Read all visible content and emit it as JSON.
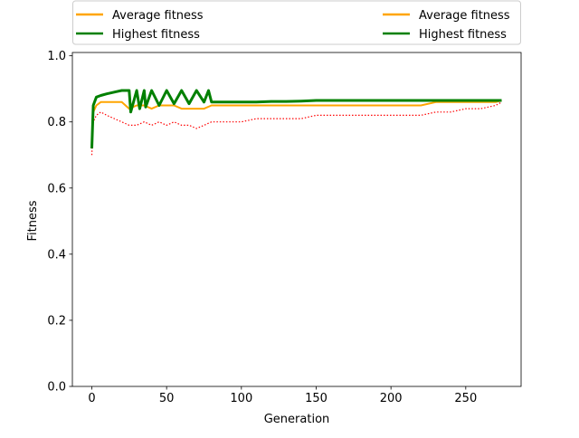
{
  "chart_data": {
    "type": "line",
    "xlabel": "Generation",
    "ylabel": "Fitness",
    "xlim": [
      -13,
      287
    ],
    "ylim": [
      0.0,
      1.01
    ],
    "x_ticks": [
      {
        "v": 0,
        "label": "0"
      },
      {
        "v": 50,
        "label": "50"
      },
      {
        "v": 100,
        "label": "100"
      },
      {
        "v": 150,
        "label": "150"
      },
      {
        "v": 200,
        "label": "200"
      },
      {
        "v": 250,
        "label": "250"
      }
    ],
    "y_ticks": [
      {
        "v": 0.0,
        "label": "0.0"
      },
      {
        "v": 0.2,
        "label": "0.2"
      },
      {
        "v": 0.4,
        "label": "0.4"
      },
      {
        "v": 0.6,
        "label": "0.6"
      },
      {
        "v": 0.8,
        "label": "0.8"
      },
      {
        "v": 1.0,
        "label": "1.0"
      }
    ],
    "grid": false,
    "legend_placement": "top, above plot, two columns",
    "legend": [
      {
        "label": "Average fitness",
        "color": "#ffa500"
      },
      {
        "label": "Highest fitness",
        "color": "#008000"
      },
      {
        "label": "Average fitness",
        "color": "#ffa500"
      },
      {
        "label": "Highest fitness",
        "color": "#008000"
      }
    ],
    "series": [
      {
        "role": "lowest",
        "color": "#ff0000",
        "style": "dotted",
        "x": [
          0,
          1,
          3,
          6,
          10,
          15,
          20,
          25,
          30,
          35,
          40,
          45,
          50,
          55,
          60,
          65,
          70,
          75,
          80,
          90,
          100,
          110,
          120,
          130,
          140,
          150,
          160,
          170,
          180,
          190,
          200,
          210,
          220,
          230,
          240,
          250,
          260,
          270,
          274
        ],
        "y": [
          0.7,
          0.8,
          0.82,
          0.83,
          0.82,
          0.81,
          0.8,
          0.79,
          0.79,
          0.8,
          0.79,
          0.8,
          0.79,
          0.8,
          0.79,
          0.79,
          0.78,
          0.79,
          0.8,
          0.8,
          0.8,
          0.81,
          0.81,
          0.81,
          0.81,
          0.82,
          0.82,
          0.82,
          0.82,
          0.82,
          0.82,
          0.82,
          0.82,
          0.83,
          0.83,
          0.84,
          0.84,
          0.85,
          0.86
        ]
      },
      {
        "role": "average",
        "color": "#ffa500",
        "style": "solid",
        "x": [
          0,
          1,
          3,
          6,
          10,
          15,
          20,
          25,
          30,
          35,
          40,
          45,
          50,
          55,
          60,
          65,
          70,
          75,
          80,
          90,
          100,
          110,
          120,
          130,
          140,
          150,
          160,
          170,
          180,
          190,
          200,
          210,
          220,
          230,
          240,
          250,
          260,
          270,
          274
        ],
        "y": [
          0.72,
          0.83,
          0.85,
          0.86,
          0.86,
          0.86,
          0.86,
          0.84,
          0.85,
          0.85,
          0.84,
          0.85,
          0.85,
          0.85,
          0.84,
          0.84,
          0.84,
          0.84,
          0.85,
          0.85,
          0.85,
          0.85,
          0.85,
          0.85,
          0.85,
          0.85,
          0.85,
          0.85,
          0.85,
          0.85,
          0.85,
          0.85,
          0.85,
          0.86,
          0.86,
          0.86,
          0.86,
          0.86,
          0.865
        ]
      },
      {
        "role": "highest",
        "color": "#008000",
        "style": "solid",
        "x": [
          0,
          1,
          3,
          6,
          10,
          15,
          20,
          25,
          26,
          30,
          32,
          35,
          36,
          40,
          45,
          50,
          55,
          60,
          65,
          70,
          75,
          78,
          80,
          90,
          100,
          110,
          120,
          130,
          140,
          150,
          160,
          170,
          180,
          190,
          200,
          210,
          220,
          230,
          240,
          250,
          260,
          270,
          274
        ],
        "y": [
          0.72,
          0.85,
          0.875,
          0.88,
          0.885,
          0.89,
          0.895,
          0.895,
          0.83,
          0.895,
          0.84,
          0.895,
          0.845,
          0.895,
          0.85,
          0.895,
          0.855,
          0.895,
          0.855,
          0.895,
          0.86,
          0.895,
          0.86,
          0.86,
          0.86,
          0.86,
          0.862,
          0.862,
          0.863,
          0.865,
          0.865,
          0.865,
          0.865,
          0.865,
          0.865,
          0.865,
          0.865,
          0.865,
          0.865,
          0.865,
          0.865,
          0.865,
          0.865
        ]
      }
    ]
  }
}
